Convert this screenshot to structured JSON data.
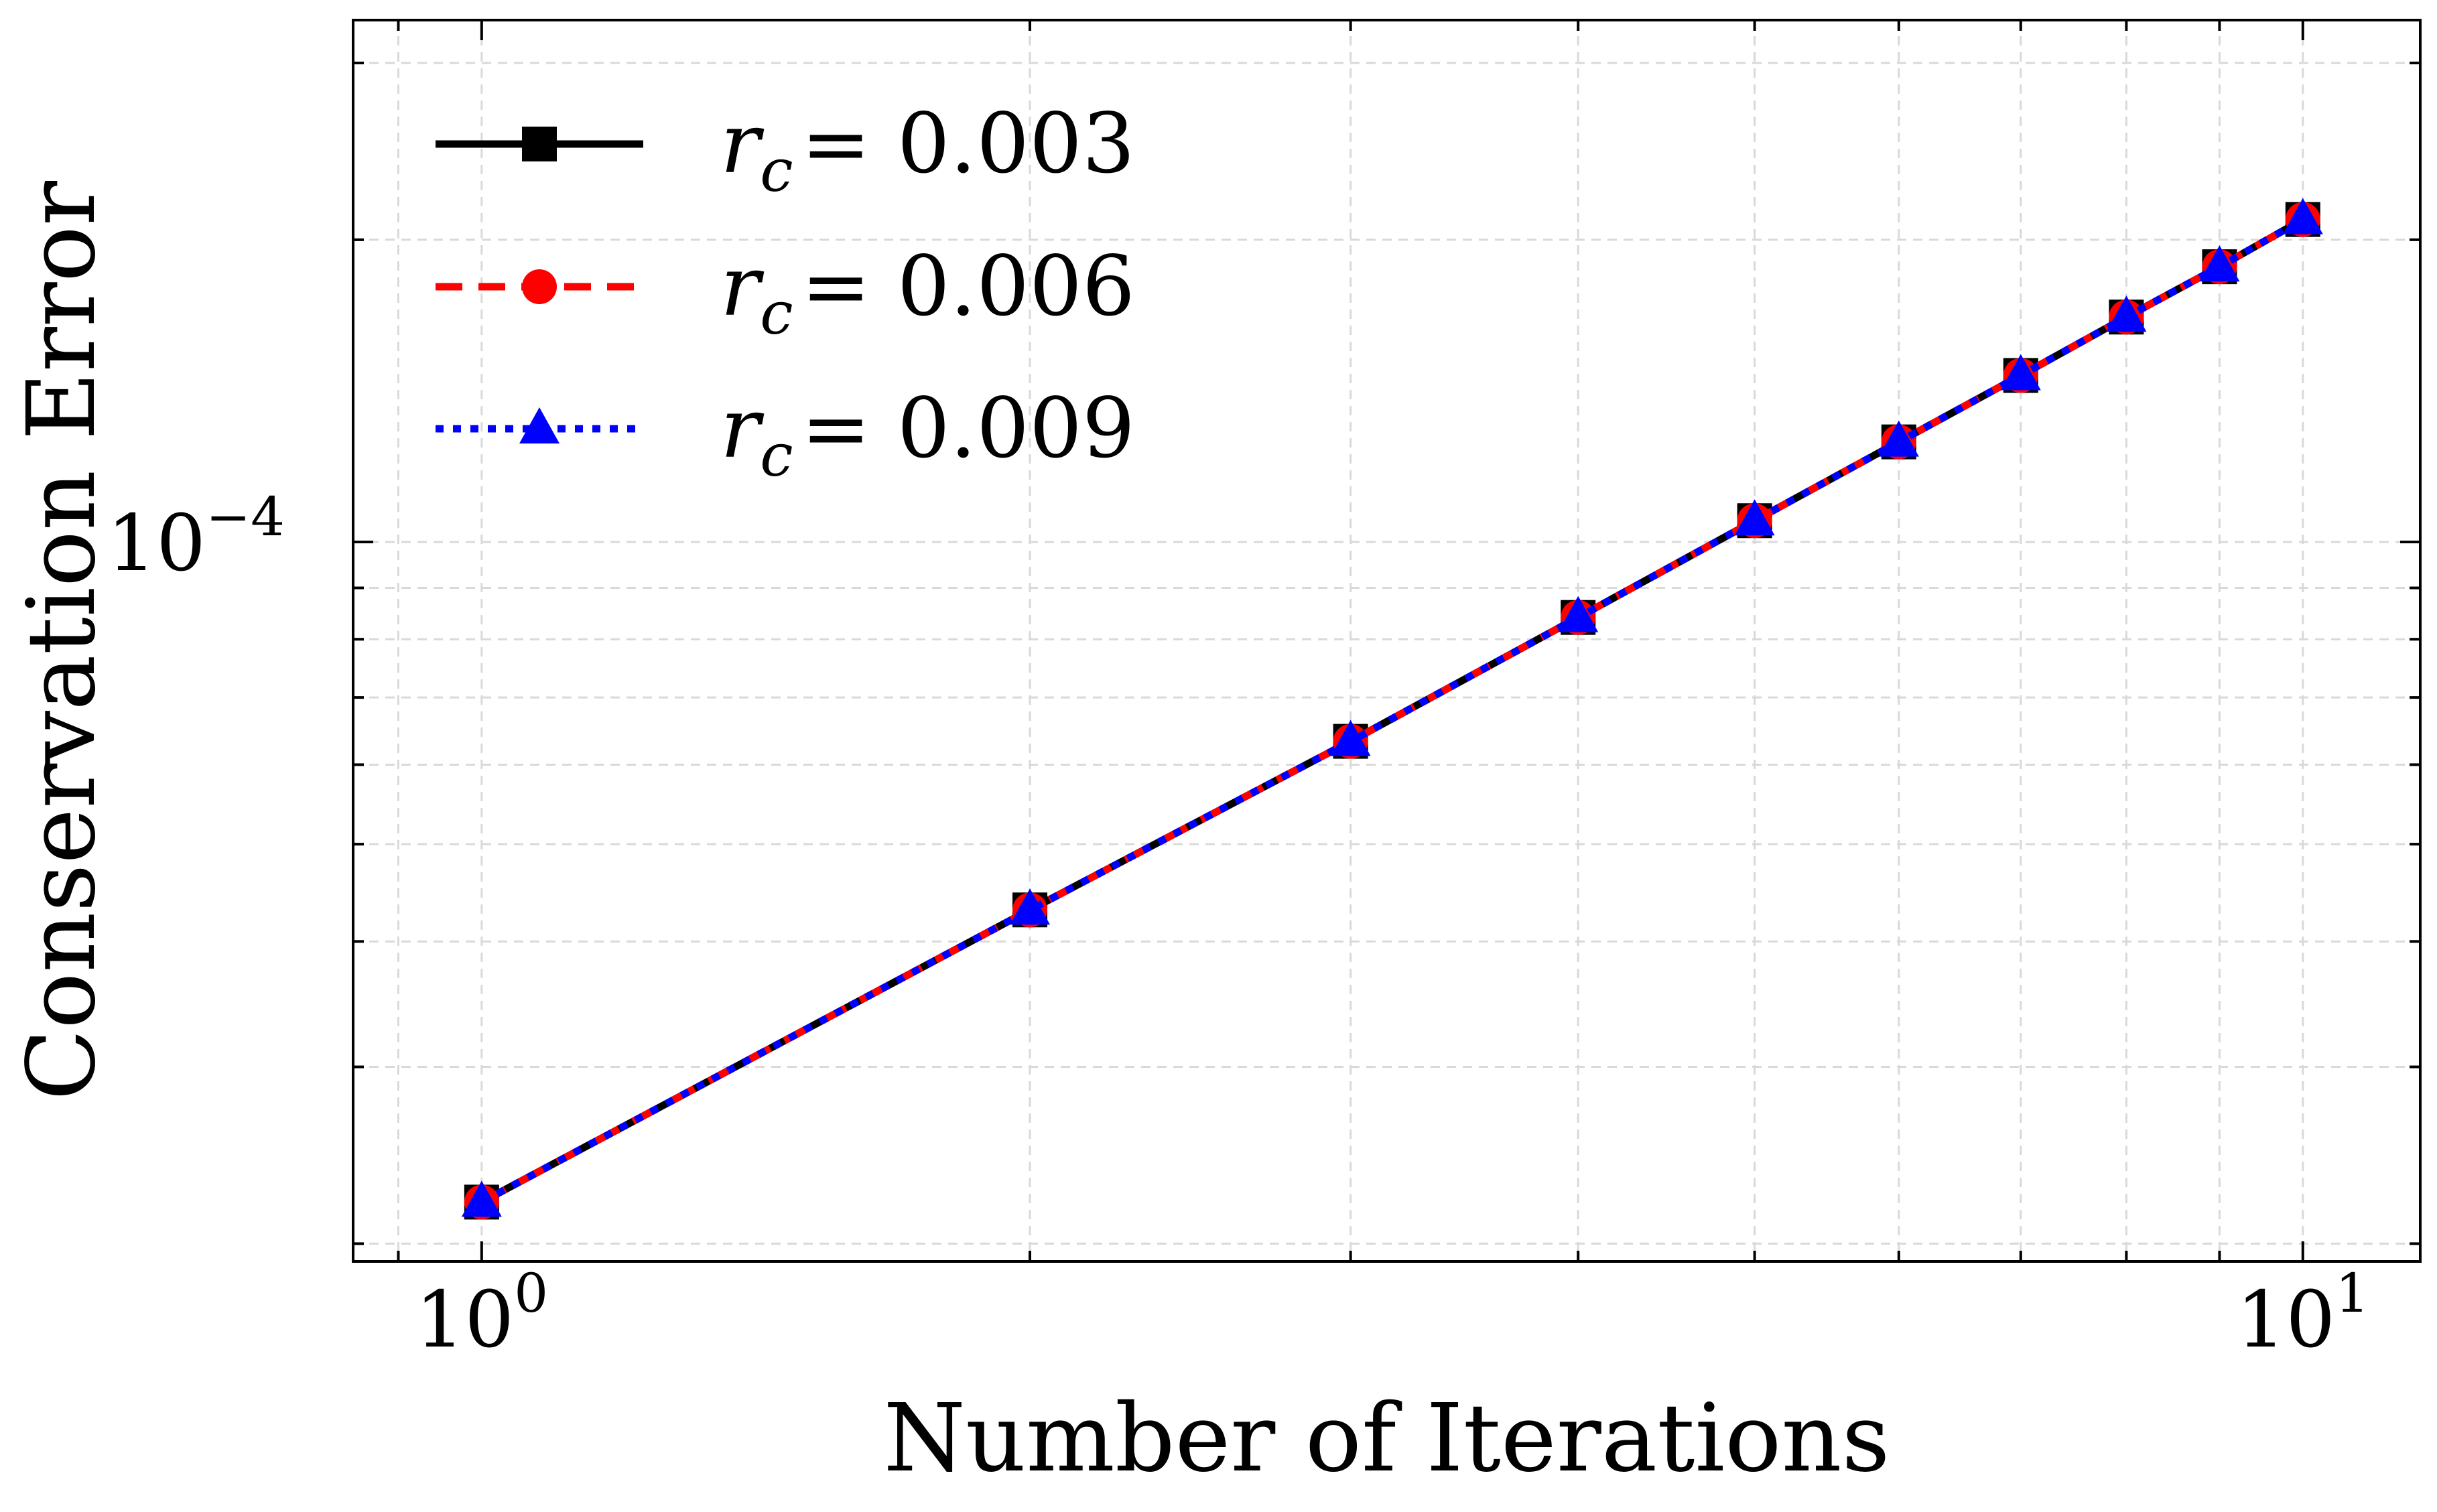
{
  "chart_data": {
    "type": "line",
    "title": "",
    "xlabel": "Number of Iterations",
    "ylabel": "Conservation Error",
    "xscale": "log",
    "yscale": "log",
    "xlim": [
      0.85,
      11.6
    ],
    "ylim": [
      1.92e-05,
      0.000331
    ],
    "x_ticks": [
      {
        "value": 1,
        "base": "10",
        "exp": "0"
      },
      {
        "value": 10,
        "base": "10",
        "exp": "1"
      }
    ],
    "y_ticks": [
      {
        "value": 0.0001,
        "base": "10",
        "exp": "−4"
      }
    ],
    "grid": true,
    "legend_position": "top-left",
    "x": [
      1,
      2,
      3,
      4,
      5,
      6,
      7,
      8,
      9,
      10
    ],
    "series": [
      {
        "name": "r_c = 0.003",
        "label_main": "r",
        "label_sub": "c",
        "label_value": "= 0.003",
        "color": "#000000",
        "linestyle": "solid",
        "marker": "square",
        "values": [
          2.2e-05,
          4.3e-05,
          6.33e-05,
          8.41e-05,
          0.000105,
          0.0001258,
          0.0001465,
          0.0001675,
          0.000188,
          0.0002095
        ]
      },
      {
        "name": "r_c = 0.006",
        "label_main": "r",
        "label_sub": "c",
        "label_value": "= 0.006",
        "color": "#ff0000",
        "linestyle": "dashed",
        "marker": "circle",
        "values": [
          2.2e-05,
          4.3e-05,
          6.33e-05,
          8.41e-05,
          0.000105,
          0.0001258,
          0.0001465,
          0.0001675,
          0.000188,
          0.0002095
        ]
      },
      {
        "name": "r_c = 0.009",
        "label_main": "r",
        "label_sub": "c",
        "label_value": "= 0.009",
        "color": "#0000ff",
        "linestyle": "dotted",
        "marker": "triangle",
        "values": [
          2.2e-05,
          4.3e-05,
          6.33e-05,
          8.41e-05,
          0.000105,
          0.0001258,
          0.0001465,
          0.0001675,
          0.000188,
          0.0002095
        ]
      }
    ]
  }
}
